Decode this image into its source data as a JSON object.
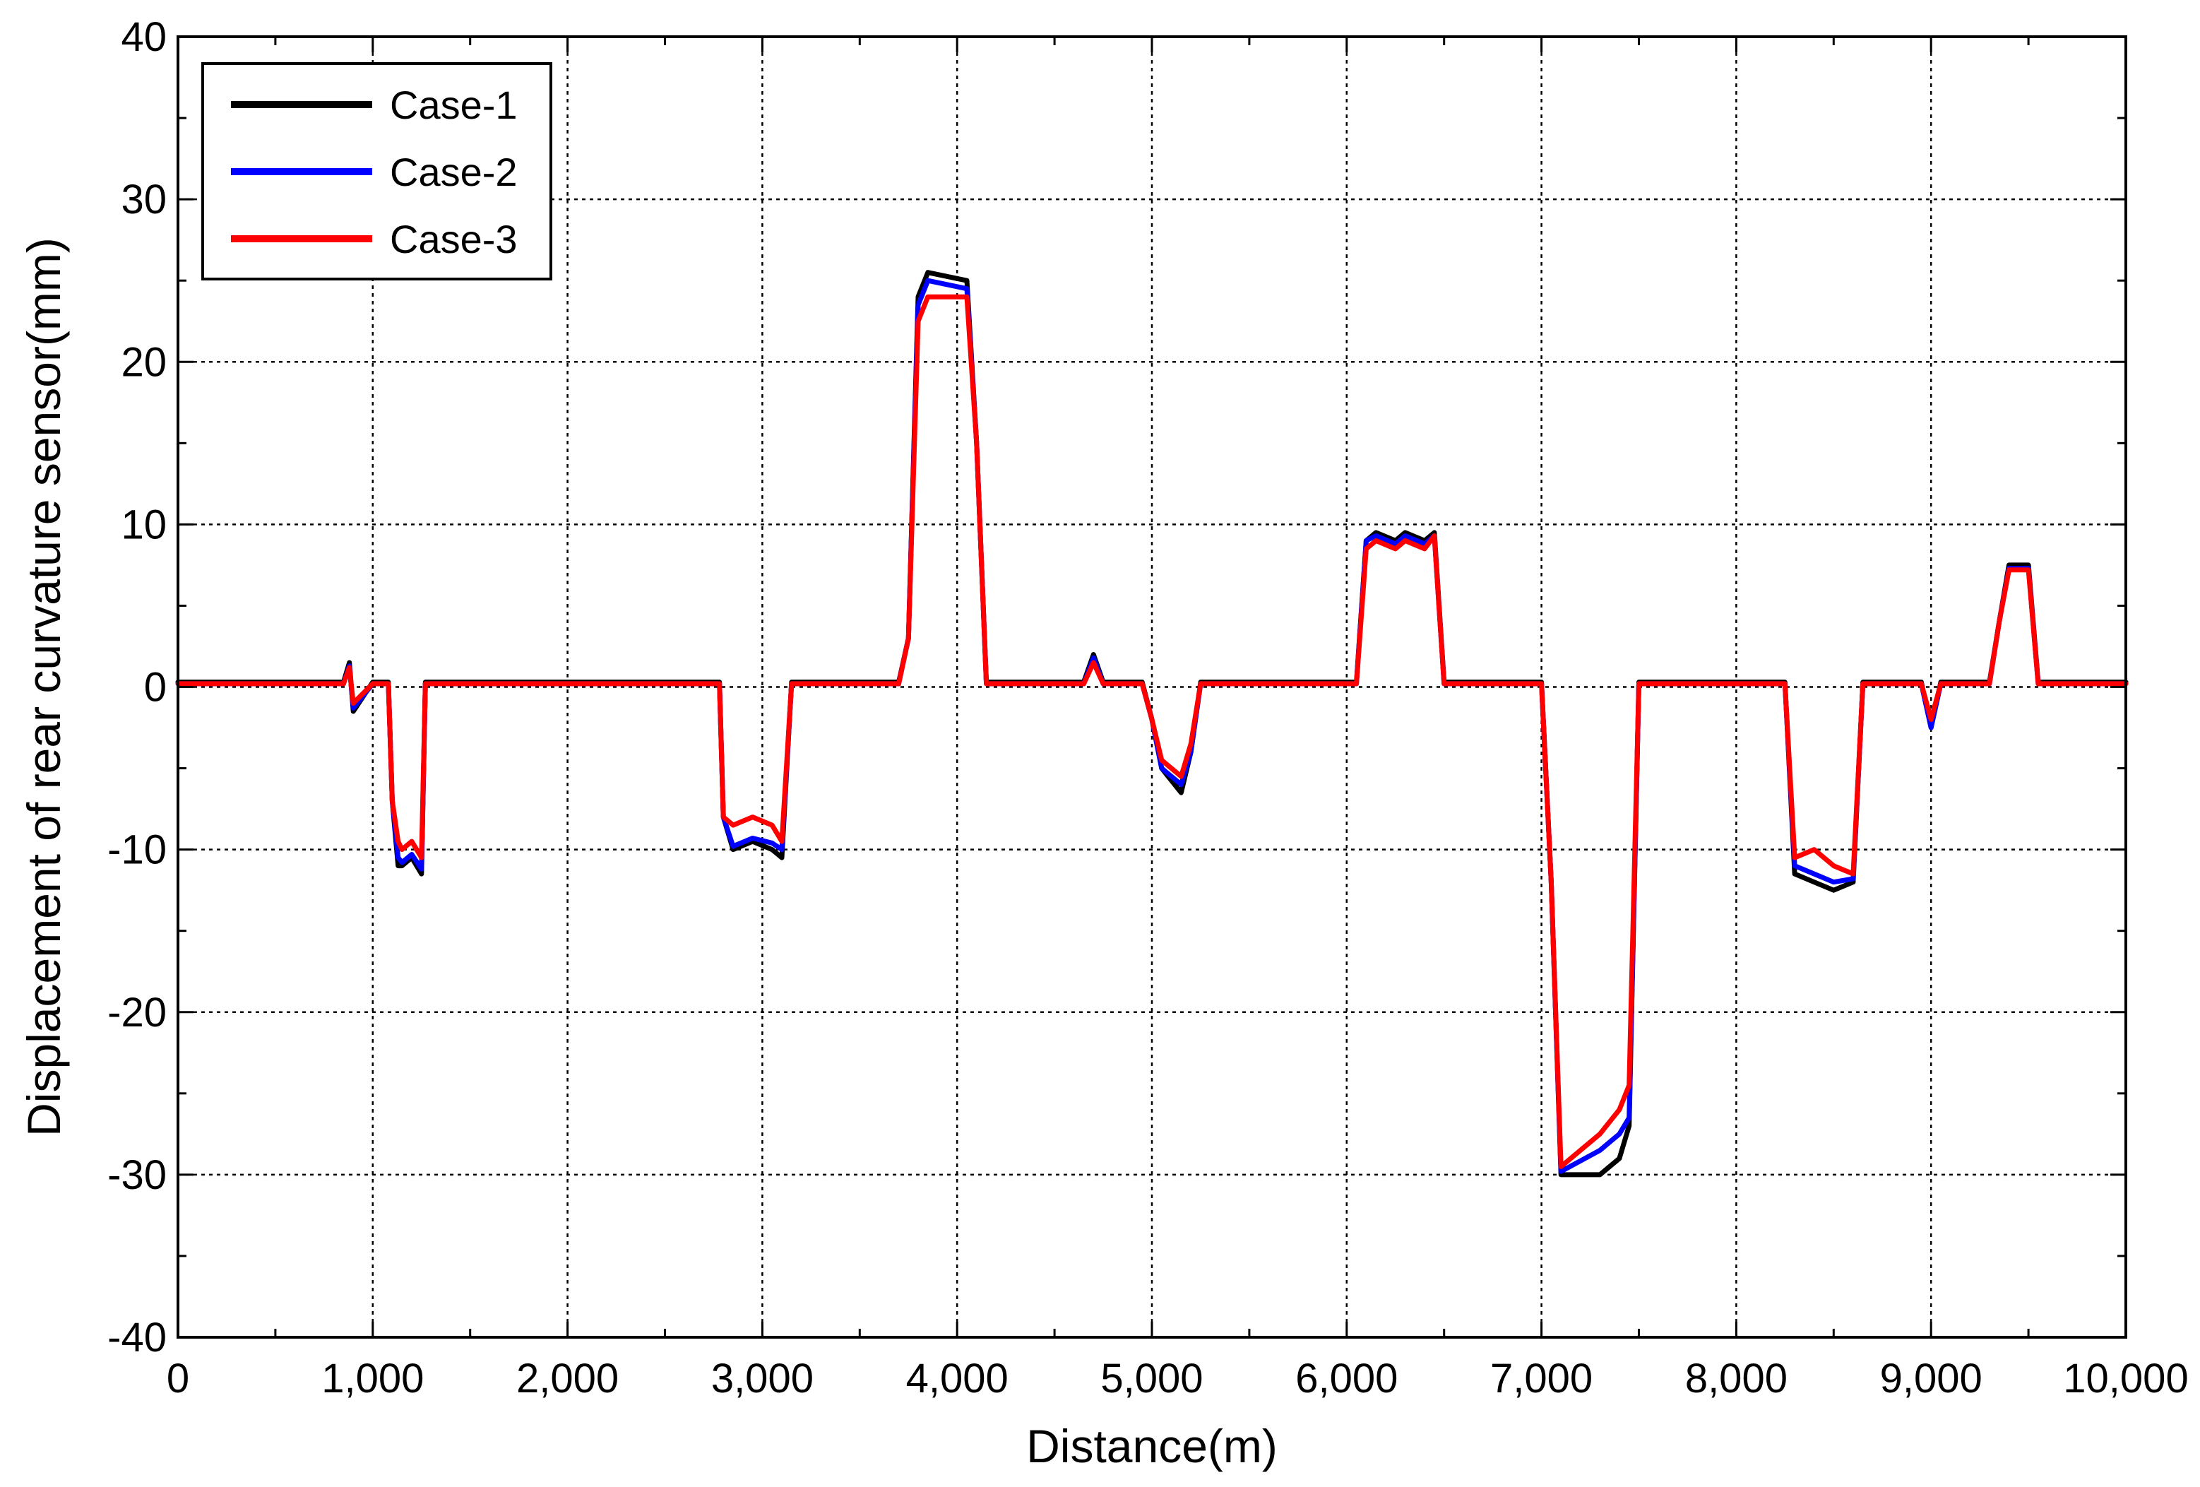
{
  "chart_data": {
    "type": "line",
    "xlabel": "Distance(m)",
    "ylabel": "Displacement of rear curvature sensor(mm)",
    "xlim": [
      0,
      10000
    ],
    "ylim": [
      -40,
      40
    ],
    "x_ticks": [
      0,
      1000,
      2000,
      3000,
      4000,
      5000,
      6000,
      7000,
      8000,
      9000,
      10000
    ],
    "x_tick_labels": [
      "0",
      "1,000",
      "2,000",
      "3,000",
      "4,000",
      "5,000",
      "6,000",
      "7,000",
      "8,000",
      "9,000",
      "10,000"
    ],
    "y_ticks": [
      -40,
      -30,
      -20,
      -10,
      0,
      10,
      20,
      30,
      40
    ],
    "y_tick_labels": [
      "-40",
      "-30",
      "-20",
      "-10",
      "0",
      "10",
      "20",
      "30",
      "40"
    ],
    "grid": true,
    "legend_position": "top-left",
    "series": [
      {
        "name": "Case-1",
        "color": "#000000",
        "x": [
          0,
          850,
          880,
          900,
          1000,
          1080,
          1100,
          1130,
          1150,
          1200,
          1250,
          1270,
          1300,
          2780,
          2800,
          2850,
          2950,
          3050,
          3100,
          3150,
          3200,
          3700,
          3750,
          3800,
          3850,
          4050,
          4100,
          4150,
          4650,
          4700,
          4750,
          4950,
          5000,
          5050,
          5150,
          5200,
          5250,
          5300,
          6050,
          6100,
          6150,
          6250,
          6300,
          6400,
          6450,
          6500,
          6950,
          7000,
          7050,
          7100,
          7300,
          7400,
          7450,
          7500,
          8200,
          8250,
          8300,
          8400,
          8500,
          8600,
          8650,
          8700,
          8950,
          9000,
          9050,
          9100,
          9300,
          9350,
          9400,
          9500,
          9550,
          9600,
          10000
        ],
        "y": [
          0.3,
          0.3,
          1.5,
          -1.5,
          0.3,
          0.3,
          -7,
          -11,
          -11,
          -10.5,
          -11.5,
          0.3,
          0.3,
          0.3,
          -8,
          -10,
          -9.5,
          -10,
          -10.5,
          0.3,
          0.3,
          0.3,
          3,
          24,
          25.5,
          25,
          15,
          0.3,
          0.3,
          2,
          0.3,
          0.3,
          -2,
          -5,
          -6.5,
          -4,
          0.3,
          0.3,
          0.3,
          9,
          9.5,
          9,
          9.5,
          9,
          9.5,
          0.3,
          0.3,
          0.3,
          -12,
          -30,
          -30,
          -29,
          -27,
          0.3,
          0.3,
          0.3,
          -11.5,
          -12,
          -12.5,
          -12,
          0.3,
          0.3,
          0.3,
          -2.5,
          0.3,
          0.3,
          0.3,
          4,
          7.5,
          7.5,
          0.3,
          0.3,
          0.3
        ]
      },
      {
        "name": "Case-2",
        "color": "#0000ff",
        "x": [
          0,
          850,
          880,
          900,
          1000,
          1080,
          1100,
          1130,
          1150,
          1200,
          1250,
          1270,
          1300,
          2780,
          2800,
          2850,
          2950,
          3050,
          3100,
          3150,
          3200,
          3700,
          3750,
          3800,
          3850,
          4050,
          4100,
          4150,
          4650,
          4700,
          4750,
          4950,
          5000,
          5050,
          5150,
          5200,
          5250,
          5300,
          6050,
          6100,
          6150,
          6250,
          6300,
          6400,
          6450,
          6500,
          6950,
          7000,
          7050,
          7100,
          7300,
          7400,
          7450,
          7500,
          8200,
          8250,
          8300,
          8400,
          8500,
          8600,
          8650,
          8700,
          8950,
          9000,
          9050,
          9100,
          9300,
          9350,
          9400,
          9500,
          9550,
          9600,
          10000
        ],
        "y": [
          0.2,
          0.2,
          1.3,
          -1.3,
          0.2,
          0.2,
          -7,
          -10.5,
          -10.8,
          -10.3,
          -11.2,
          0.2,
          0.2,
          0.2,
          -8,
          -9.8,
          -9.3,
          -9.6,
          -10,
          0.2,
          0.2,
          0.2,
          3,
          23.5,
          25,
          24.5,
          15,
          0.2,
          0.2,
          1.8,
          0.2,
          0.2,
          -2,
          -5,
          -6,
          -4,
          0.2,
          0.2,
          0.2,
          9,
          9.3,
          8.8,
          9.3,
          8.8,
          9.3,
          0.2,
          0.2,
          0.2,
          -12,
          -29.8,
          -28.5,
          -27.5,
          -26.5,
          0.2,
          0.2,
          0.2,
          -11,
          -11.5,
          -12,
          -11.8,
          0.2,
          0.2,
          0.2,
          -2.5,
          0.2,
          0.2,
          0.2,
          4,
          7.3,
          7.3,
          0.2,
          0.2,
          0.2
        ]
      },
      {
        "name": "Case-3",
        "color": "#ff0000",
        "x": [
          0,
          850,
          880,
          900,
          1000,
          1080,
          1100,
          1130,
          1150,
          1200,
          1250,
          1270,
          1300,
          2780,
          2800,
          2850,
          2950,
          3050,
          3100,
          3150,
          3200,
          3700,
          3750,
          3800,
          3850,
          4050,
          4100,
          4150,
          4650,
          4700,
          4750,
          4950,
          5000,
          5050,
          5150,
          5200,
          5250,
          5300,
          6050,
          6100,
          6150,
          6250,
          6300,
          6400,
          6450,
          6500,
          6950,
          7000,
          7050,
          7100,
          7300,
          7400,
          7450,
          7500,
          8200,
          8250,
          8300,
          8400,
          8500,
          8600,
          8650,
          8700,
          8950,
          9000,
          9050,
          9100,
          9300,
          9350,
          9400,
          9500,
          9550,
          9600,
          10000
        ],
        "y": [
          0.2,
          0.2,
          1.2,
          -1,
          0.2,
          0.2,
          -7,
          -9.5,
          -10,
          -9.5,
          -10.5,
          0.2,
          0.2,
          0.2,
          -8,
          -8.5,
          -8,
          -8.5,
          -9.5,
          0.2,
          0.2,
          0.2,
          3,
          22.5,
          24,
          24,
          15,
          0.2,
          0.2,
          1.5,
          0.2,
          0.2,
          -2,
          -4.5,
          -5.5,
          -3.5,
          0.2,
          0.2,
          0.2,
          8.5,
          9,
          8.5,
          9,
          8.5,
          9.3,
          0.2,
          0.2,
          0.2,
          -12,
          -29.5,
          -27.5,
          -26,
          -24.5,
          0.2,
          0.2,
          0.2,
          -10.5,
          -10,
          -11,
          -11.5,
          0.2,
          0.2,
          0.2,
          -2,
          0.2,
          0.2,
          0.2,
          4,
          7.2,
          7.2,
          0.2,
          0.2,
          0.2
        ]
      }
    ]
  }
}
